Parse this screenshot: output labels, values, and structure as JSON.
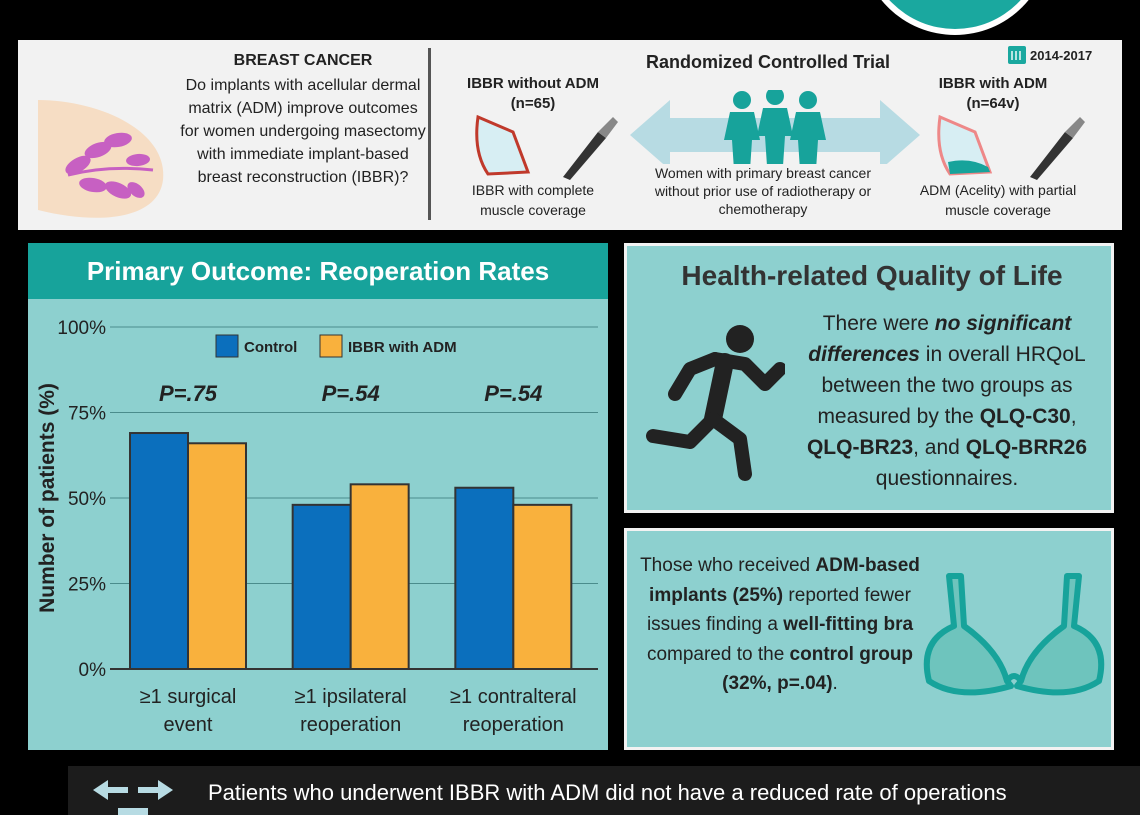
{
  "header": {
    "question_title": "BREAST CANCER",
    "question_text": "Do implants with acellular dermal matrix (ADM) improve outcomes for women undergoing masectomy with immediate implant-based breast reconstruction (IBBR)?",
    "trial_title": "Randomized Controlled Trial",
    "years": "2014-2017",
    "left_arm_title": "IBBR without ADM",
    "left_arm_n": "(n=65)",
    "left_arm_caption": "IBBR with complete muscle coverage",
    "right_arm_title": "IBBR with ADM",
    "right_arm_n": "(n=64v)",
    "right_arm_caption": "ADM (Acelity) with partial muscle coverage",
    "population": "Women with primary breast cancer without prior use of radiotherapy or chemotherapy"
  },
  "primary": {
    "title": "Primary Outcome: Reoperation Rates"
  },
  "chart_data": {
    "type": "bar",
    "title": "Primary Outcome: Reoperation Rates",
    "ylabel": "Number of patients (%)",
    "xlabel": "",
    "ylim": [
      0,
      100
    ],
    "yticks": [
      0,
      25,
      50,
      75,
      100
    ],
    "ytick_labels": [
      "0%",
      "25%",
      "50%",
      "75%",
      "100%"
    ],
    "categories": [
      "≥1 surgical event",
      "≥1 ipsilateral reoperation",
      "≥1 contralteral reoperation"
    ],
    "category_lines": [
      [
        "≥1 surgical",
        "event"
      ],
      [
        "≥1 ipsilateral",
        "reoperation"
      ],
      [
        "≥1 contralteral",
        "reoperation"
      ]
    ],
    "p_values": [
      "P=.75",
      "P=.54",
      "P=.54"
    ],
    "series": [
      {
        "name": "Control",
        "color": "#0b6fbd",
        "values": [
          69,
          48,
          53
        ]
      },
      {
        "name": "IBBR with ADM",
        "color": "#f9b13d",
        "values": [
          66,
          54,
          48
        ]
      }
    ],
    "legend": "top-center",
    "grid": true
  },
  "hrqol": {
    "title": "Health-related Quality of Life",
    "text_1": "There were ",
    "text_em": "no significant differences",
    "text_2": " in overall HRQoL between the two groups as measured by the ",
    "q1": "QLQ-C30",
    "text_3": ", ",
    "q2": "QLQ-BR23",
    "text_4": ", and ",
    "q3": "QLQ-BRR26",
    "text_5": " questionnaires."
  },
  "bra": {
    "text_1": "Those who received ",
    "bold_1": "ADM-based implants (25%)",
    "text_2": " reported fewer issues finding a ",
    "bold_2": "well-fitting bra",
    "text_3": " compared to the ",
    "bold_3": "control group (32%, p=.04)",
    "text_4": "."
  },
  "footer": {
    "text": "Patients who underwent IBBR with ADM did not have a reduced rate of operations"
  },
  "colors": {
    "teal": "#17a39b",
    "panel": "#8dd0cf",
    "control": "#0b6fbd",
    "adm": "#f9b13d"
  }
}
